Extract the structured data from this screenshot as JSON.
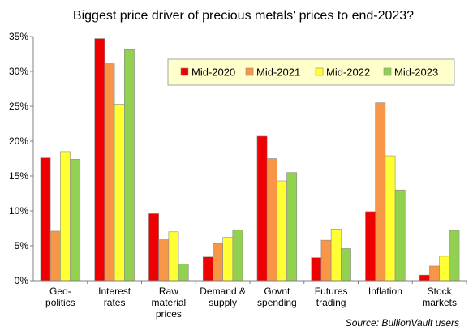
{
  "chart_data": {
    "type": "bar",
    "title": "Biggest price driver of precious metals' prices to end-2023?",
    "categories": [
      [
        "Geo-",
        "politics"
      ],
      [
        "Interest",
        "rates"
      ],
      [
        "Raw",
        "material",
        "prices"
      ],
      [
        "Demand &",
        "supply"
      ],
      [
        "Govnt",
        "spending"
      ],
      [
        "Futures",
        "trading"
      ],
      [
        "Inflation"
      ],
      [
        "Stock",
        "markets"
      ]
    ],
    "series": [
      {
        "name": "Mid-2020",
        "color": "#ee0000",
        "values": [
          17.6,
          34.7,
          9.6,
          3.4,
          20.7,
          3.3,
          9.9,
          0.8
        ]
      },
      {
        "name": "Mid-2021",
        "color": "#f79646",
        "values": [
          7.1,
          31.1,
          6.0,
          5.3,
          17.5,
          5.8,
          25.5,
          2.1
        ]
      },
      {
        "name": "Mid-2022",
        "color": "#ffff33",
        "values": [
          18.5,
          25.3,
          7.0,
          6.2,
          14.3,
          7.4,
          17.9,
          3.5
        ]
      },
      {
        "name": "Mid-2023",
        "color": "#92d050",
        "values": [
          17.4,
          33.1,
          2.4,
          7.3,
          15.5,
          4.6,
          13.0,
          7.2
        ]
      }
    ],
    "y_ticks": [
      "0%",
      "5%",
      "10%",
      "15%",
      "20%",
      "25%",
      "30%",
      "35%"
    ],
    "ylim": [
      0,
      35
    ],
    "y_unit": "%",
    "grid": false,
    "legend_placement": "top-center",
    "legend_background": "#ffffcc",
    "source": "Source: BullionVault users"
  }
}
